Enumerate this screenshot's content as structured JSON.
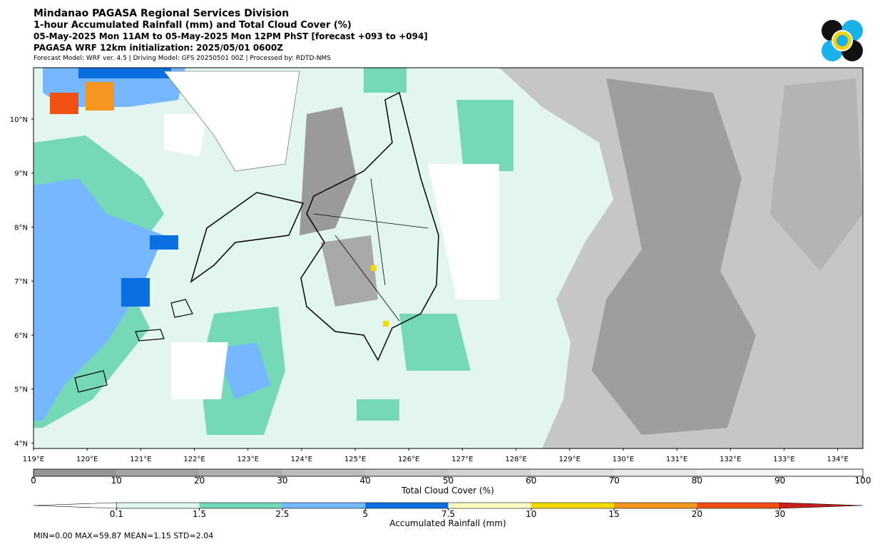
{
  "header": {
    "lines": [
      "Mindanao PAGASA Regional Services Division",
      "1-hour Accumulated Rainfall (mm) and Total Cloud Cover (%)",
      "05-May-2025 Mon 11AM to 05-May-2025 Mon 12PM PhST [forecast +093 to +094]",
      "PAGASA WRF 12km initialization: 2025/05/01 0600Z",
      "Forecast Model: WRF ver. 4.5 | Driving Model: GFS 20250501 00Z | Processed by: RDTD-NMS"
    ]
  },
  "map": {
    "lonlim": [
      119,
      134.47
    ],
    "latlim": [
      3.9,
      10.95
    ],
    "lon_ticks": [
      {
        "value": 119,
        "label": "119°E"
      },
      {
        "value": 120,
        "label": "120°E"
      },
      {
        "value": 121,
        "label": "121°E"
      },
      {
        "value": 122,
        "label": "122°E"
      },
      {
        "value": 123,
        "label": "123°E"
      },
      {
        "value": 124,
        "label": "124°E"
      },
      {
        "value": 125,
        "label": "125°E"
      },
      {
        "value": 126,
        "label": "126°E"
      },
      {
        "value": 127,
        "label": "127°E"
      },
      {
        "value": 128,
        "label": "128°E"
      },
      {
        "value": 129,
        "label": "129°E"
      },
      {
        "value": 130,
        "label": "130°E"
      },
      {
        "value": 131,
        "label": "131°E"
      },
      {
        "value": 132,
        "label": "132°E"
      },
      {
        "value": 133,
        "label": "133°E"
      },
      {
        "value": 134,
        "label": "134°E"
      }
    ],
    "lat_ticks": [
      {
        "value": 4,
        "label": "4°N"
      },
      {
        "value": 5,
        "label": "5°N"
      },
      {
        "value": 6,
        "label": "6°N"
      },
      {
        "value": 7,
        "label": "7°N"
      },
      {
        "value": 8,
        "label": "8°N"
      },
      {
        "value": 9,
        "label": "9°N"
      },
      {
        "value": 10,
        "label": "10°N"
      }
    ]
  },
  "cloud_colorbar": {
    "label": "Total Cloud Cover (%)",
    "lim": [
      0,
      100
    ],
    "ticks": [
      0,
      10,
      20,
      30,
      40,
      50,
      60,
      70,
      80,
      90,
      100
    ],
    "colors": [
      "#969696",
      "#a3a3a3",
      "#b0b0b0",
      "#bdbdbd",
      "#c8c8c8",
      "#d4d4d4",
      "#dfdfdf",
      "#e9e9e9",
      "#f3f3f3",
      "#ffffff"
    ]
  },
  "rain_colorbar": {
    "label": "Accumulated Rainfall (mm)",
    "ticks": [
      0.1,
      1.5,
      2.5,
      5,
      7.5,
      10,
      15,
      20,
      30
    ],
    "colors": [
      "#ffffff",
      "#dff5ee",
      "#74d8b8",
      "#74b8ff",
      "#0a6fe0",
      "#ffffc0",
      "#f5dc00",
      "#f5961e",
      "#f05014",
      "#c81e1e"
    ]
  },
  "stats": "MIN=0.00   MAX=59.87   MEAN=1.15   STD=2.04"
}
